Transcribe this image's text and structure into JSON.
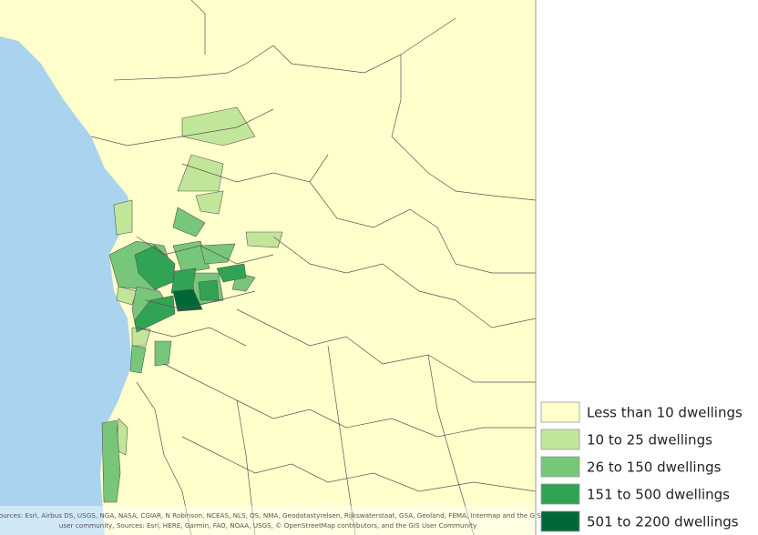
{
  "legend": {
    "items": [
      {
        "label": "Less than 10 dwellings",
        "color": "#ffffcc"
      },
      {
        "label": "10 to 25 dwellings",
        "color": "#c2e699"
      },
      {
        "label": "26 to 150 dwellings",
        "color": "#78c679"
      },
      {
        "label": "151 to 500 dwellings",
        "color": "#31a354"
      },
      {
        "label": "501 to 2200 dwellings",
        "color": "#006837"
      }
    ]
  },
  "attribution": {
    "lines": [
      "Sources: Esri, Airbus DS, USGS, NGA, NASA, CGIAR, N Robinson, NCEAS, NLS, OS, NMA, Geodatastyrelsen, Rijkswaterstaat, GSA, Geoland, FEMA, Intermap and the GIS",
      "user community, Sources: Esri, HERE, Garmin, FAO, NOAA, USGS, © OpenStreetMap contributors, and the GIS User Community"
    ]
  }
}
